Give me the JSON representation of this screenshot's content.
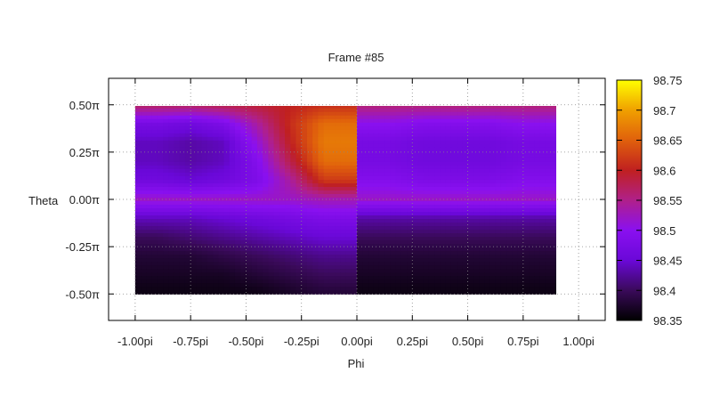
{
  "chart_data": {
    "type": "heatmap",
    "title": "Frame #85",
    "xlabel": "Phi",
    "ylabel": "Theta",
    "xlim": [
      -1.12,
      1.12
    ],
    "ylim": [
      -0.64,
      0.64
    ],
    "x_ticks": [
      {
        "value": -1.0,
        "label": "-1.00pi"
      },
      {
        "value": -0.75,
        "label": "-0.75pi"
      },
      {
        "value": -0.5,
        "label": "-0.50pi"
      },
      {
        "value": -0.25,
        "label": "-0.25pi"
      },
      {
        "value": 0.0,
        "label": "0.00pi"
      },
      {
        "value": 0.25,
        "label": "0.25pi"
      },
      {
        "value": 0.5,
        "label": "0.50pi"
      },
      {
        "value": 0.75,
        "label": "0.75pi"
      },
      {
        "value": 1.0,
        "label": "1.00pi"
      }
    ],
    "y_ticks": [
      {
        "value": 0.5,
        "label": "0.50π"
      },
      {
        "value": 0.25,
        "label": "0.25π"
      },
      {
        "value": 0.0,
        "label": "0.00π"
      },
      {
        "value": -0.25,
        "label": "-0.25π"
      },
      {
        "value": -0.5,
        "label": "-0.50π"
      }
    ],
    "data_extent": {
      "x": [
        -1.0,
        0.9
      ],
      "y": [
        -0.5,
        0.5
      ]
    },
    "grid": true,
    "colorbar": {
      "min": 98.35,
      "max": 98.75,
      "ticks": [
        "98.75",
        "98.7",
        "98.65",
        "98.6",
        "98.55",
        "98.5",
        "98.45",
        "98.4",
        "98.35"
      ],
      "colormap": [
        "#000000",
        "#3a0a5a",
        "#6a08d8",
        "#8a10f0",
        "#b0208a",
        "#c02020",
        "#e0600c",
        "#f0a000",
        "#ffff00"
      ]
    },
    "columns_x": [
      -0.9,
      -0.75,
      -0.6,
      -0.45,
      -0.3,
      -0.15,
      0.15,
      0.3,
      0.45,
      0.6,
      0.75,
      0.9
    ],
    "rows_y": [
      0.5,
      0.4,
      0.3,
      0.2,
      0.1,
      0.0,
      -0.1,
      -0.2,
      -0.3,
      -0.4,
      -0.5
    ],
    "values": [
      [
        98.57,
        98.57,
        98.58,
        98.59,
        98.6,
        98.61,
        98.56,
        98.56,
        98.56,
        98.56,
        98.56,
        98.56
      ],
      [
        98.47,
        98.46,
        98.48,
        98.54,
        98.61,
        98.66,
        98.5,
        98.49,
        98.49,
        98.49,
        98.5,
        98.5
      ],
      [
        98.44,
        98.43,
        98.44,
        98.51,
        98.6,
        98.67,
        98.47,
        98.46,
        98.46,
        98.46,
        98.47,
        98.47
      ],
      [
        98.44,
        98.43,
        98.44,
        98.49,
        98.58,
        98.66,
        98.47,
        98.46,
        98.46,
        98.46,
        98.47,
        98.47
      ],
      [
        98.46,
        98.45,
        98.46,
        98.48,
        98.54,
        98.62,
        98.49,
        98.48,
        98.48,
        98.48,
        98.49,
        98.49
      ],
      [
        98.52,
        98.52,
        98.52,
        98.52,
        98.52,
        98.53,
        98.52,
        98.52,
        98.52,
        98.52,
        98.52,
        98.52
      ],
      [
        98.44,
        98.44,
        98.45,
        98.46,
        98.47,
        98.48,
        98.43,
        98.43,
        98.43,
        98.43,
        98.43,
        98.43
      ],
      [
        98.4,
        98.41,
        98.42,
        98.43,
        98.44,
        98.45,
        98.4,
        98.4,
        98.4,
        98.4,
        98.4,
        98.4
      ],
      [
        98.38,
        98.38,
        98.39,
        98.4,
        98.41,
        98.42,
        98.38,
        98.38,
        98.38,
        98.38,
        98.38,
        98.38
      ],
      [
        98.37,
        98.37,
        98.37,
        98.38,
        98.39,
        98.4,
        98.37,
        98.37,
        98.37,
        98.37,
        98.37,
        98.37
      ],
      [
        98.36,
        98.36,
        98.36,
        98.36,
        98.37,
        98.38,
        98.36,
        98.36,
        98.36,
        98.36,
        98.36,
        98.36
      ]
    ]
  }
}
